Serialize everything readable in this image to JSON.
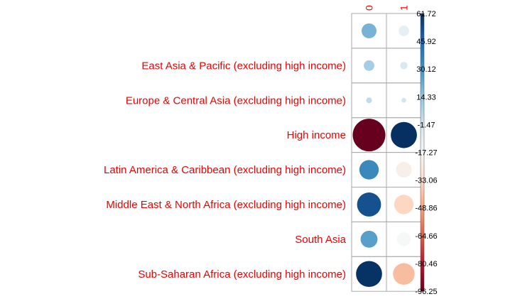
{
  "chart_data": {
    "type": "heatmap",
    "style": "circle-correlation-plot",
    "columns": [
      "0",
      "1"
    ],
    "rows": [
      "",
      "East Asia & Pacific (excluding high income)",
      "Europe & Central Asia (excluding high income)",
      "High income",
      "Latin America & Caribbean (excluding high income)",
      "Middle East & North Africa (excluding high income)",
      "South Asia",
      "Sub-Saharan Africa (excluding high income)"
    ],
    "values": [
      [
        20,
        -10
      ],
      [
        10,
        -5
      ],
      [
        3,
        -2
      ],
      [
        -96.25,
        61.72
      ],
      [
        34,
        -22
      ],
      [
        52,
        -34
      ],
      [
        26,
        -17
      ],
      [
        61,
        -42
      ]
    ],
    "color_scale": {
      "min": -96.25,
      "max": 61.72,
      "labels": [
        "61.72",
        "45.92",
        "30.12",
        "14.33",
        "-1.47",
        "-17.27",
        "-33.06",
        "-48.86",
        "-64.66",
        "-80.46",
        "-96.25"
      ]
    }
  }
}
